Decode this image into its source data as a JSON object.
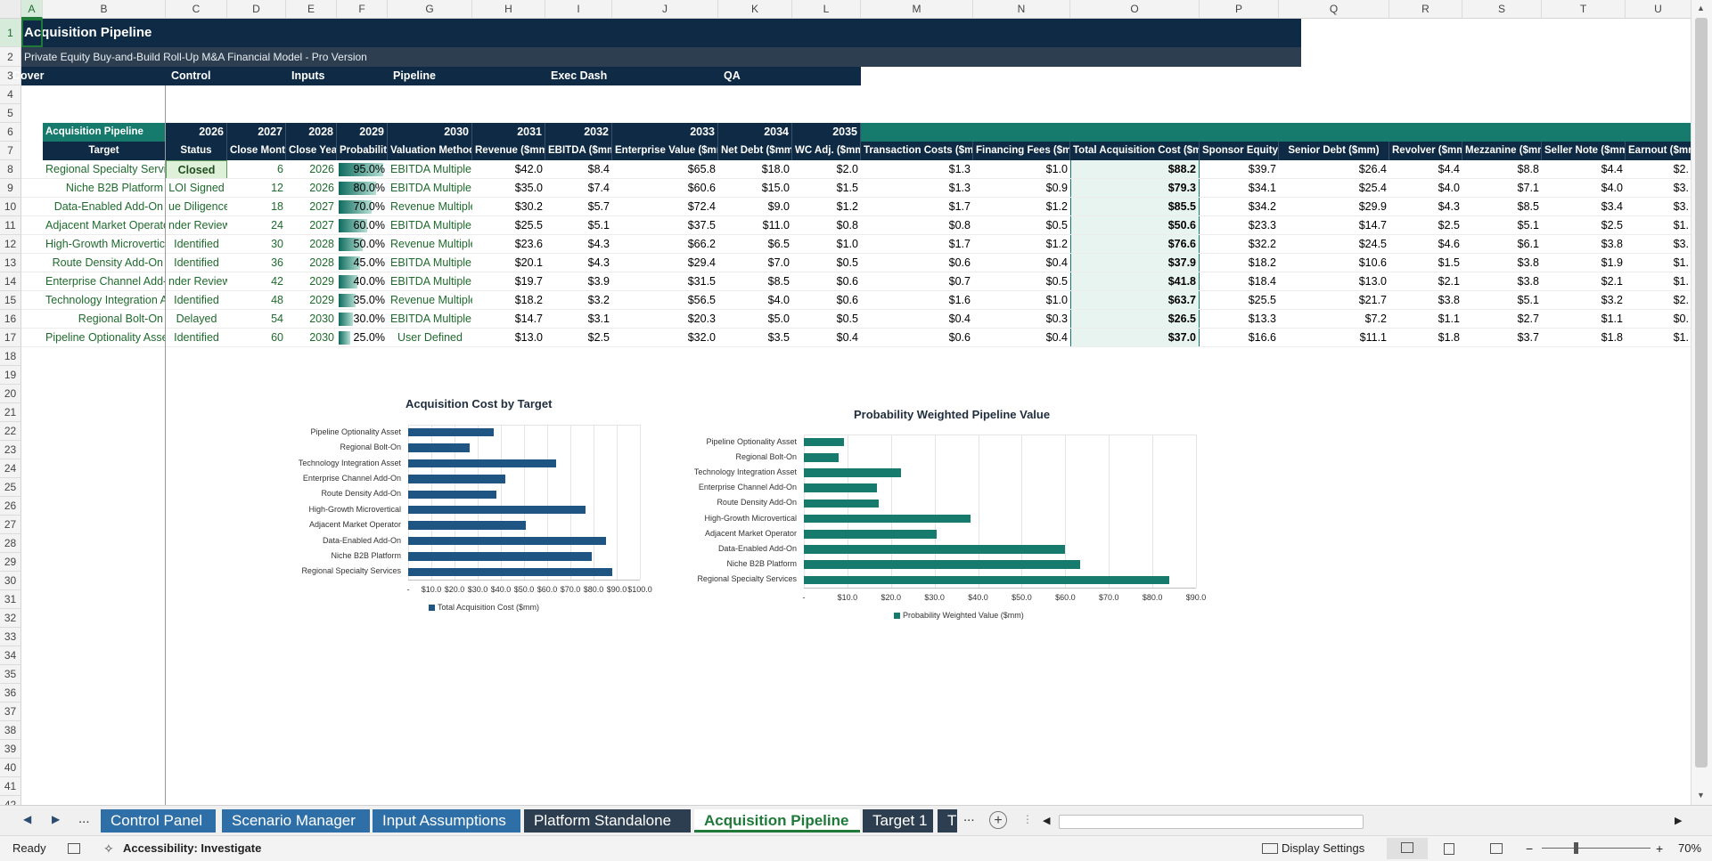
{
  "name_box": "A",
  "title": "Acquisition Pipeline",
  "subtitle": "Private Equity Buy-and-Build Roll-Up M&A Financial Model - Pro Version",
  "nav_tabs": [
    "Cover",
    "Control",
    "Inputs",
    "Pipeline",
    "Exec Dash",
    "QA"
  ],
  "columns": [
    "A",
    "B",
    "C",
    "D",
    "E",
    "F",
    "G",
    "H",
    "I",
    "J",
    "K",
    "L",
    "M",
    "N",
    "O",
    "P",
    "Q",
    "R",
    "S",
    "T",
    "U"
  ],
  "rows": [
    "1",
    "2",
    "3",
    "4",
    "5",
    "6",
    "7",
    "8",
    "9",
    "10",
    "11",
    "12",
    "13",
    "14",
    "15",
    "16",
    "17",
    "18",
    "19",
    "20",
    "21",
    "22",
    "23",
    "24",
    "25",
    "26",
    "27",
    "28",
    "29",
    "30",
    "31",
    "32",
    "33",
    "34",
    "35",
    "36",
    "37",
    "38",
    "39",
    "40",
    "41",
    "42"
  ],
  "table": {
    "section_label": "Acquisition Pipeline",
    "years": [
      "2026",
      "2027",
      "2028",
      "2029",
      "2030",
      "2031",
      "2032",
      "2033",
      "2034",
      "2035"
    ],
    "headers": [
      "Target",
      "Status",
      "Close Month",
      "Close Year",
      "Probability",
      "Valuation Method",
      "Revenue ($mm)",
      "EBITDA ($mm)",
      "Enterprise Value ($mm)",
      "Net Debt ($mm)",
      "WC Adj. ($mm)",
      "Transaction Costs ($mm)",
      "Financing Fees ($mm)",
      "Total Acquisition Cost ($mm)",
      "Sponsor Equity ($mm)",
      "Senior Debt ($mm)",
      "Revolver ($mm)",
      "Mezzanine ($mm)",
      "Seller Note ($mm)",
      "Earnout ($mm)"
    ],
    "rows": [
      {
        "target": "Regional Specialty Services",
        "status": "Closed",
        "month": "6",
        "year": "2026",
        "prob": "95.0%",
        "prob_value": 0.95,
        "method": "EBITDA Multiple",
        "rev": "$42.0",
        "ebitda": "$8.4",
        "ev": "$65.8",
        "nd": "$18.0",
        "wc": "$2.0",
        "tc": "$1.3",
        "ff": "$1.0",
        "total": "$88.2",
        "se": "$39.7",
        "sd": "$26.4",
        "rv": "$4.4",
        "mz": "$8.8",
        "sn": "$4.4",
        "eo": "$2."
      },
      {
        "target": "Niche B2B Platform",
        "status": "LOI Signed",
        "month": "12",
        "year": "2026",
        "prob": "80.0%",
        "prob_value": 0.8,
        "method": "EBITDA Multiple",
        "rev": "$35.0",
        "ebitda": "$7.4",
        "ev": "$60.6",
        "nd": "$15.0",
        "wc": "$1.5",
        "tc": "$1.3",
        "ff": "$0.9",
        "total": "$79.3",
        "se": "$34.1",
        "sd": "$25.4",
        "rv": "$4.0",
        "mz": "$7.1",
        "sn": "$4.0",
        "eo": "$3."
      },
      {
        "target": "Data-Enabled Add-On",
        "status": "ue Diligence",
        "month": "18",
        "year": "2027",
        "prob": "70.0%",
        "prob_value": 0.7,
        "method": "Revenue Multiple",
        "rev": "$30.2",
        "ebitda": "$5.7",
        "ev": "$72.4",
        "nd": "$9.0",
        "wc": "$1.2",
        "tc": "$1.7",
        "ff": "$1.2",
        "total": "$85.5",
        "se": "$34.2",
        "sd": "$29.9",
        "rv": "$4.3",
        "mz": "$8.5",
        "sn": "$3.4",
        "eo": "$3."
      },
      {
        "target": "Adjacent Market Operator",
        "status": "nder Review",
        "month": "24",
        "year": "2027",
        "prob": "60.0%",
        "prob_value": 0.6,
        "method": "EBITDA Multiple",
        "rev": "$25.5",
        "ebitda": "$5.1",
        "ev": "$37.5",
        "nd": "$11.0",
        "wc": "$0.8",
        "tc": "$0.8",
        "ff": "$0.5",
        "total": "$50.6",
        "se": "$23.3",
        "sd": "$14.7",
        "rv": "$2.5",
        "mz": "$5.1",
        "sn": "$2.5",
        "eo": "$1."
      },
      {
        "target": "High-Growth Microvertical",
        "status": "Identified",
        "month": "30",
        "year": "2028",
        "prob": "50.0%",
        "prob_value": 0.5,
        "method": "Revenue Multiple",
        "rev": "$23.6",
        "ebitda": "$4.3",
        "ev": "$66.2",
        "nd": "$6.5",
        "wc": "$1.0",
        "tc": "$1.7",
        "ff": "$1.2",
        "total": "$76.6",
        "se": "$32.2",
        "sd": "$24.5",
        "rv": "$4.6",
        "mz": "$6.1",
        "sn": "$3.8",
        "eo": "$3."
      },
      {
        "target": "Route Density Add-On",
        "status": "Identified",
        "month": "36",
        "year": "2028",
        "prob": "45.0%",
        "prob_value": 0.45,
        "method": "EBITDA Multiple",
        "rev": "$20.1",
        "ebitda": "$4.3",
        "ev": "$29.4",
        "nd": "$7.0",
        "wc": "$0.5",
        "tc": "$0.6",
        "ff": "$0.4",
        "total": "$37.9",
        "se": "$18.2",
        "sd": "$10.6",
        "rv": "$1.5",
        "mz": "$3.8",
        "sn": "$1.9",
        "eo": "$1."
      },
      {
        "target": "Enterprise Channel Add-On",
        "status": "nder Review",
        "month": "42",
        "year": "2029",
        "prob": "40.0%",
        "prob_value": 0.4,
        "method": "EBITDA Multiple",
        "rev": "$19.7",
        "ebitda": "$3.9",
        "ev": "$31.5",
        "nd": "$8.5",
        "wc": "$0.6",
        "tc": "$0.7",
        "ff": "$0.5",
        "total": "$41.8",
        "se": "$18.4",
        "sd": "$13.0",
        "rv": "$2.1",
        "mz": "$3.8",
        "sn": "$2.1",
        "eo": "$1."
      },
      {
        "target": "Technology Integration Asset",
        "status": "Identified",
        "month": "48",
        "year": "2029",
        "prob": "35.0%",
        "prob_value": 0.35,
        "method": "Revenue Multiple",
        "rev": "$18.2",
        "ebitda": "$3.2",
        "ev": "$56.5",
        "nd": "$4.0",
        "wc": "$0.6",
        "tc": "$1.6",
        "ff": "$1.0",
        "total": "$63.7",
        "se": "$25.5",
        "sd": "$21.7",
        "rv": "$3.8",
        "mz": "$5.1",
        "sn": "$3.2",
        "eo": "$2."
      },
      {
        "target": "Regional Bolt-On",
        "status": "Delayed",
        "month": "54",
        "year": "2030",
        "prob": "30.0%",
        "prob_value": 0.3,
        "method": "EBITDA Multiple",
        "rev": "$14.7",
        "ebitda": "$3.1",
        "ev": "$20.3",
        "nd": "$5.0",
        "wc": "$0.5",
        "tc": "$0.4",
        "ff": "$0.3",
        "total": "$26.5",
        "se": "$13.3",
        "sd": "$7.2",
        "rv": "$1.1",
        "mz": "$2.7",
        "sn": "$1.1",
        "eo": "$0."
      },
      {
        "target": "Pipeline Optionality Asset",
        "status": "Identified",
        "month": "60",
        "year": "2030",
        "prob": "25.0%",
        "prob_value": 0.25,
        "method": "User Defined",
        "rev": "$13.0",
        "ebitda": "$2.5",
        "ev": "$32.0",
        "nd": "$3.5",
        "wc": "$0.4",
        "tc": "$0.6",
        "ff": "$0.4",
        "total": "$37.0",
        "se": "$16.6",
        "sd": "$11.1",
        "rv": "$1.8",
        "mz": "$3.7",
        "sn": "$1.8",
        "eo": "$1."
      }
    ]
  },
  "chart_data": [
    {
      "type": "bar",
      "orientation": "horizontal",
      "title": "Acquisition Cost by Target",
      "categories": [
        "Pipeline Optionality Asset",
        "Regional Bolt-On",
        "Technology Integration Asset",
        "Enterprise Channel Add-On",
        "Route Density Add-On",
        "High-Growth Microvertical",
        "Adjacent Market Operator",
        "Data-Enabled Add-On",
        "Niche B2B Platform",
        "Regional Specialty Services"
      ],
      "series": [
        {
          "name": "Total Acquisition Cost ($mm)",
          "values": [
            37.0,
            26.5,
            63.7,
            41.8,
            37.9,
            76.6,
            50.6,
            85.5,
            79.3,
            88.2
          ]
        }
      ],
      "xlim": [
        0,
        100
      ],
      "xticks": [
        "-",
        "$10.0",
        "$20.0",
        "$30.0",
        "$40.0",
        "$50.0",
        "$60.0",
        "$70.0",
        "$80.0",
        "$90.0",
        "$100.0"
      ],
      "grid": true,
      "legend": "bottom",
      "color": "#1f5582"
    },
    {
      "type": "bar",
      "orientation": "horizontal",
      "title": "Probability Weighted Pipeline Value",
      "categories": [
        "Pipeline Optionality Asset",
        "Regional Bolt-On",
        "Technology Integration Asset",
        "Enterprise Channel Add-On",
        "Route Density Add-On",
        "High-Growth Microvertical",
        "Adjacent Market Operator",
        "Data-Enabled Add-On",
        "Niche B2B Platform",
        "Regional Specialty Services"
      ],
      "series": [
        {
          "name": "Probability Weighted Value ($mm)",
          "values": [
            9.3,
            8.0,
            22.3,
            16.7,
            17.1,
            38.3,
            30.4,
            59.9,
            63.4,
            83.8
          ]
        }
      ],
      "xlim": [
        0,
        90
      ],
      "xticks": [
        "-",
        "$10.0",
        "$20.0",
        "$30.0",
        "$40.0",
        "$50.0",
        "$60.0",
        "$70.0",
        "$80.0",
        "$90.0"
      ],
      "grid": true,
      "legend": "bottom",
      "color": "#167a6c"
    }
  ],
  "sheet_tabs": [
    {
      "label": "Control Panel",
      "active": false
    },
    {
      "label": "Scenario Manager",
      "active": false
    },
    {
      "label": "Input Assumptions",
      "active": false
    },
    {
      "label": "Platform Standalone",
      "active": false
    },
    {
      "label": "Acquisition Pipeline",
      "active": true
    },
    {
      "label": "Target 1",
      "active": false
    },
    {
      "label": "T",
      "active": false
    }
  ],
  "tab_ellipsis": "...",
  "status": {
    "ready": "Ready",
    "accessibility": "Accessibility: Investigate",
    "display_settings": "Display Settings",
    "zoom": "70%"
  }
}
